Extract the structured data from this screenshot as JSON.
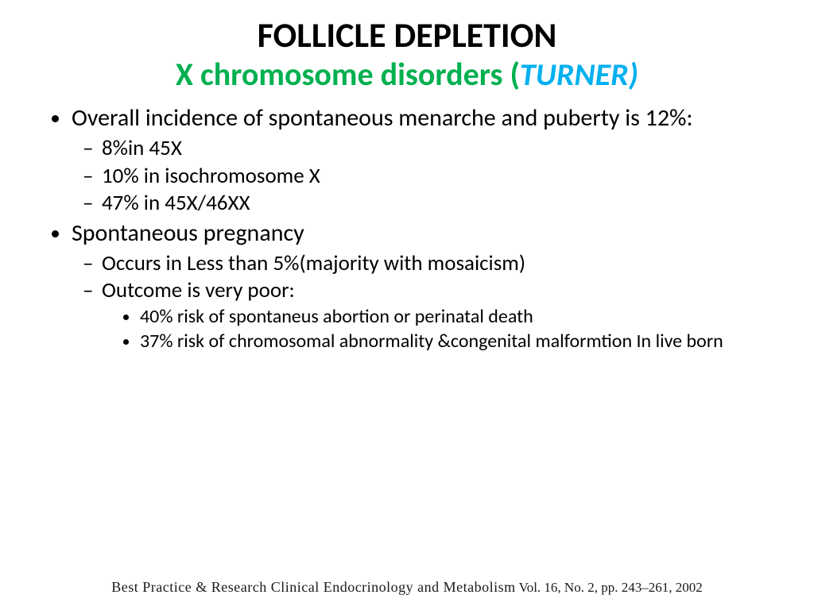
{
  "title": "FOLLICLE DEPLETION",
  "subtitle": {
    "prefix": "X chromosome disorders (",
    "emph": "TURNER",
    "suffix": ")"
  },
  "colors": {
    "subtitle_green": "#00b050",
    "subtitle_blue": "#00b0f0",
    "text": "#000000",
    "background": "#ffffff"
  },
  "typography": {
    "title_fontsize": 44,
    "subtitle_fontsize": 40,
    "level1_fontsize": 30,
    "level2_fontsize": 27,
    "level3_fontsize": 24,
    "citation_fontsize": 18,
    "title_weight": 700
  },
  "bullets": {
    "b1": "Overall incidence of spontaneous menarche and puberty is 12%:",
    "b1_sub": {
      "s1": "8%in 45X",
      "s2": "10% in isochromosome X",
      "s3": "47% in 45X/46XX"
    },
    "b2": "Spontaneous pregnancy",
    "b2_sub": {
      "s1": "Occurs in Less than 5%(majority with mosaicism)",
      "s2": "Outcome is very poor:",
      "s2_sub": {
        "t1": "40% risk of spontaneus abortion or perinatal death",
        "t2": "37% risk of chromosomal abnormality &congenital malformtion In live born"
      }
    }
  },
  "citation": {
    "journal": "Best Practice & Research Clinical Endocrinology and Metabolism",
    "vol": " Vol. 16, No. 2, pp. 243–261, 2002"
  }
}
